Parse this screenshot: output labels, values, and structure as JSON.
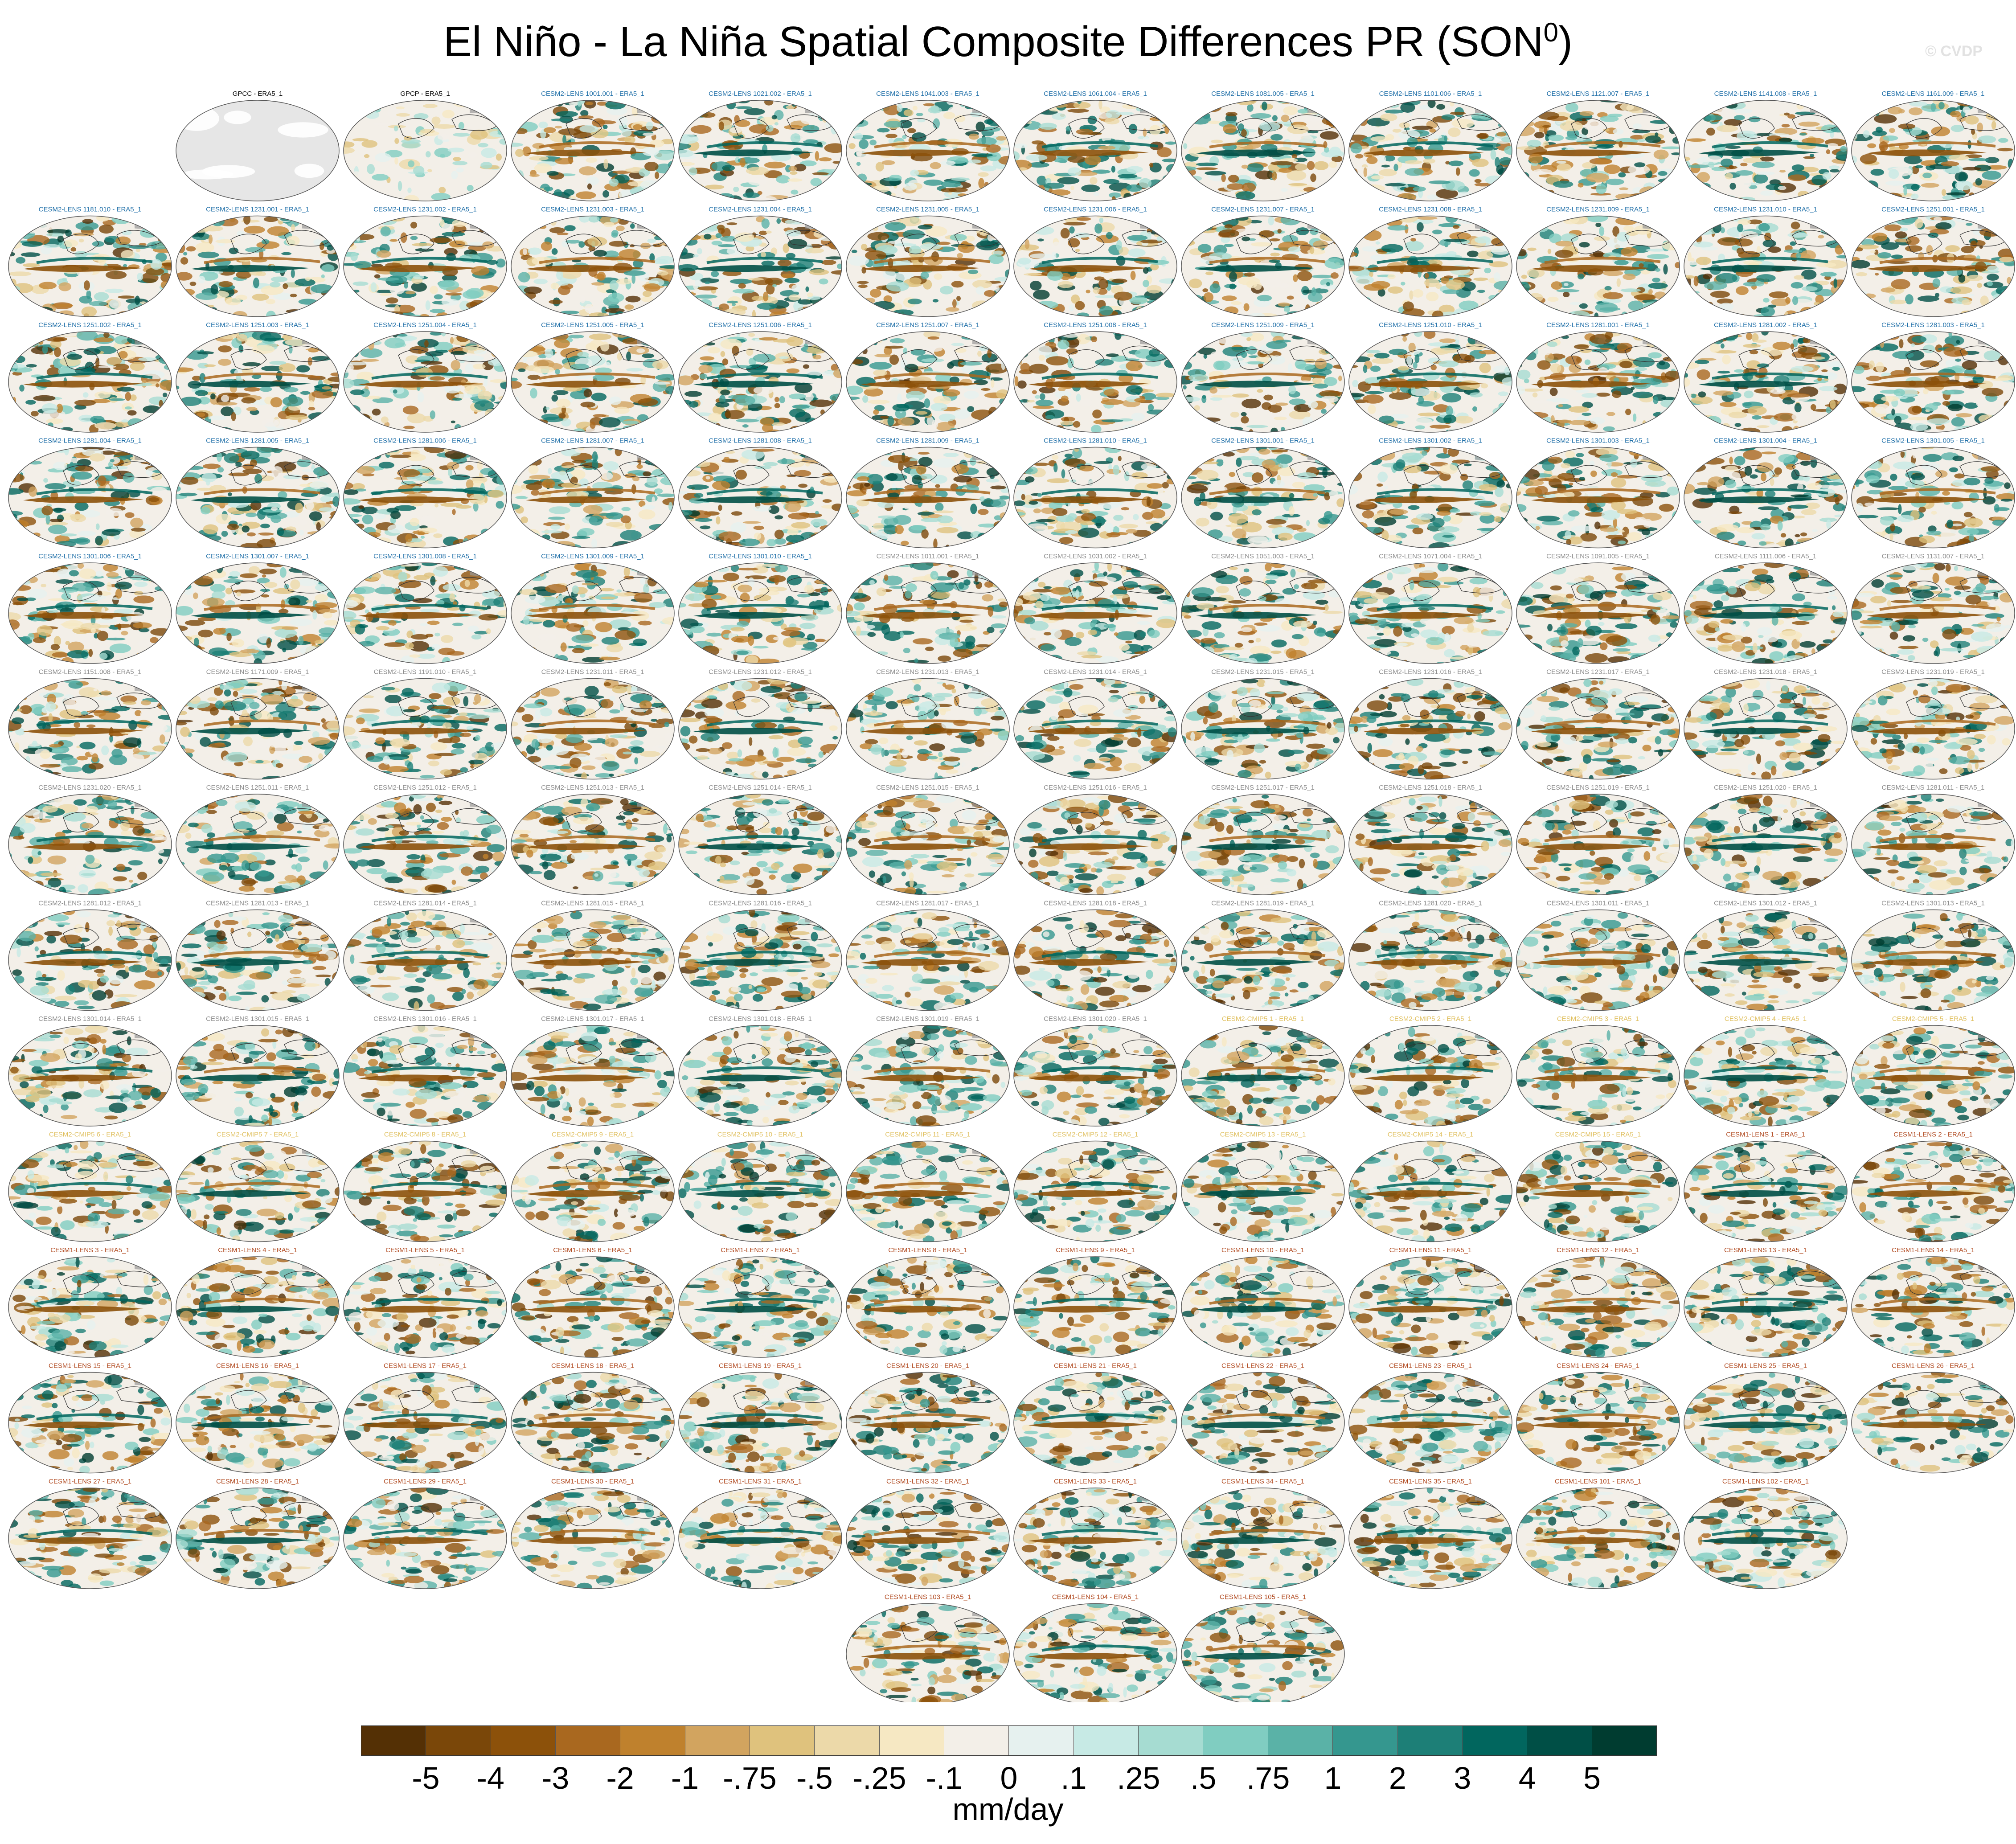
{
  "title": "El Niño - La Niña Spatial Composite Differences PR (SON",
  "title_superscript": "0",
  "title_suffix": ")",
  "watermark": "© CVDP",
  "colors": {
    "ens_cesm2_lens_a": "#1f6fa8",
    "ens_cesm2_lens_b": "#8c8c8c",
    "ens_cesm2_cmip5": "#e0c060",
    "ens_cesm1_lens": "#b0481e",
    "obs": "#000000"
  },
  "panels": [
    {
      "label": "GPCC - ERA5_1",
      "group": "obs",
      "kind": "mask"
    },
    {
      "label": "GPCP - ERA5_1",
      "group": "obs",
      "kind": "faint"
    },
    {
      "label": "CESM2-LENS 1001.001 - ERA5_1",
      "group": "ens_cesm2_lens_a"
    },
    {
      "label": "CESM2-LENS 1021.002 - ERA5_1",
      "group": "ens_cesm2_lens_a"
    },
    {
      "label": "CESM2-LENS 1041.003 - ERA5_1",
      "group": "ens_cesm2_lens_a"
    },
    {
      "label": "CESM2-LENS 1061.004 - ERA5_1",
      "group": "ens_cesm2_lens_a"
    },
    {
      "label": "CESM2-LENS 1081.005 - ERA5_1",
      "group": "ens_cesm2_lens_a"
    },
    {
      "label": "CESM2-LENS 1101.006 - ERA5_1",
      "group": "ens_cesm2_lens_a"
    },
    {
      "label": "CESM2-LENS 1121.007 - ERA5_1",
      "group": "ens_cesm2_lens_a"
    },
    {
      "label": "CESM2-LENS 1141.008 - ERA5_1",
      "group": "ens_cesm2_lens_a"
    },
    {
      "label": "CESM2-LENS 1161.009 - ERA5_1",
      "group": "ens_cesm2_lens_a"
    },
    {
      "label": "CESM2-LENS 1181.010 - ERA5_1",
      "group": "ens_cesm2_lens_a"
    },
    {
      "label": "CESM2-LENS 1231.001 - ERA5_1",
      "group": "ens_cesm2_lens_a"
    },
    {
      "label": "CESM2-LENS 1231.002 - ERA5_1",
      "group": "ens_cesm2_lens_a"
    },
    {
      "label": "CESM2-LENS 1231.003 - ERA5_1",
      "group": "ens_cesm2_lens_a"
    },
    {
      "label": "CESM2-LENS 1231.004 - ERA5_1",
      "group": "ens_cesm2_lens_a"
    },
    {
      "label": "CESM2-LENS 1231.005 - ERA5_1",
      "group": "ens_cesm2_lens_a"
    },
    {
      "label": "CESM2-LENS 1231.006 - ERA5_1",
      "group": "ens_cesm2_lens_a"
    },
    {
      "label": "CESM2-LENS 1231.007 - ERA5_1",
      "group": "ens_cesm2_lens_a"
    },
    {
      "label": "CESM2-LENS 1231.008 - ERA5_1",
      "group": "ens_cesm2_lens_a"
    },
    {
      "label": "CESM2-LENS 1231.009 - ERA5_1",
      "group": "ens_cesm2_lens_a"
    },
    {
      "label": "CESM2-LENS 1231.010 - ERA5_1",
      "group": "ens_cesm2_lens_a"
    },
    {
      "label": "CESM2-LENS 1251.001 - ERA5_1",
      "group": "ens_cesm2_lens_a"
    },
    {
      "label": "CESM2-LENS 1251.002 - ERA5_1",
      "group": "ens_cesm2_lens_a"
    },
    {
      "label": "CESM2-LENS 1251.003 - ERA5_1",
      "group": "ens_cesm2_lens_a"
    },
    {
      "label": "CESM2-LENS 1251.004 - ERA5_1",
      "group": "ens_cesm2_lens_a"
    },
    {
      "label": "CESM2-LENS 1251.005 - ERA5_1",
      "group": "ens_cesm2_lens_a"
    },
    {
      "label": "CESM2-LENS 1251.006 - ERA5_1",
      "group": "ens_cesm2_lens_a"
    },
    {
      "label": "CESM2-LENS 1251.007 - ERA5_1",
      "group": "ens_cesm2_lens_a"
    },
    {
      "label": "CESM2-LENS 1251.008 - ERA5_1",
      "group": "ens_cesm2_lens_a"
    },
    {
      "label": "CESM2-LENS 1251.009 - ERA5_1",
      "group": "ens_cesm2_lens_a"
    },
    {
      "label": "CESM2-LENS 1251.010 - ERA5_1",
      "group": "ens_cesm2_lens_a"
    },
    {
      "label": "CESM2-LENS 1281.001 - ERA5_1",
      "group": "ens_cesm2_lens_a"
    },
    {
      "label": "CESM2-LENS 1281.002 - ERA5_1",
      "group": "ens_cesm2_lens_a"
    },
    {
      "label": "CESM2-LENS 1281.003 - ERA5_1",
      "group": "ens_cesm2_lens_a"
    },
    {
      "label": "CESM2-LENS 1281.004 - ERA5_1",
      "group": "ens_cesm2_lens_a"
    },
    {
      "label": "CESM2-LENS 1281.005 - ERA5_1",
      "group": "ens_cesm2_lens_a"
    },
    {
      "label": "CESM2-LENS 1281.006 - ERA5_1",
      "group": "ens_cesm2_lens_a"
    },
    {
      "label": "CESM2-LENS 1281.007 - ERA5_1",
      "group": "ens_cesm2_lens_a"
    },
    {
      "label": "CESM2-LENS 1281.008 - ERA5_1",
      "group": "ens_cesm2_lens_a"
    },
    {
      "label": "CESM2-LENS 1281.009 - ERA5_1",
      "group": "ens_cesm2_lens_a"
    },
    {
      "label": "CESM2-LENS 1281.010 - ERA5_1",
      "group": "ens_cesm2_lens_a"
    },
    {
      "label": "CESM2-LENS 1301.001 - ERA5_1",
      "group": "ens_cesm2_lens_a"
    },
    {
      "label": "CESM2-LENS 1301.002 - ERA5_1",
      "group": "ens_cesm2_lens_a"
    },
    {
      "label": "CESM2-LENS 1301.003 - ERA5_1",
      "group": "ens_cesm2_lens_a"
    },
    {
      "label": "CESM2-LENS 1301.004 - ERA5_1",
      "group": "ens_cesm2_lens_a"
    },
    {
      "label": "CESM2-LENS 1301.005 - ERA5_1",
      "group": "ens_cesm2_lens_a"
    },
    {
      "label": "CESM2-LENS 1301.006 - ERA5_1",
      "group": "ens_cesm2_lens_a"
    },
    {
      "label": "CESM2-LENS 1301.007 - ERA5_1",
      "group": "ens_cesm2_lens_a"
    },
    {
      "label": "CESM2-LENS 1301.008 - ERA5_1",
      "group": "ens_cesm2_lens_a"
    },
    {
      "label": "CESM2-LENS 1301.009 - ERA5_1",
      "group": "ens_cesm2_lens_a"
    },
    {
      "label": "CESM2-LENS 1301.010 - ERA5_1",
      "group": "ens_cesm2_lens_a"
    },
    {
      "label": "CESM2-LENS 1011.001 - ERA5_1",
      "group": "ens_cesm2_lens_b"
    },
    {
      "label": "CESM2-LENS 1031.002 - ERA5_1",
      "group": "ens_cesm2_lens_b"
    },
    {
      "label": "CESM2-LENS 1051.003 - ERA5_1",
      "group": "ens_cesm2_lens_b"
    },
    {
      "label": "CESM2-LENS 1071.004 - ERA5_1",
      "group": "ens_cesm2_lens_b"
    },
    {
      "label": "CESM2-LENS 1091.005 - ERA5_1",
      "group": "ens_cesm2_lens_b"
    },
    {
      "label": "CESM2-LENS 1111.006 - ERA5_1",
      "group": "ens_cesm2_lens_b"
    },
    {
      "label": "CESM2-LENS 1131.007 - ERA5_1",
      "group": "ens_cesm2_lens_b"
    },
    {
      "label": "CESM2-LENS 1151.008 - ERA5_1",
      "group": "ens_cesm2_lens_b"
    },
    {
      "label": "CESM2-LENS 1171.009 - ERA5_1",
      "group": "ens_cesm2_lens_b"
    },
    {
      "label": "CESM2-LENS 1191.010 - ERA5_1",
      "group": "ens_cesm2_lens_b"
    },
    {
      "label": "CESM2-LENS 1231.011 - ERA5_1",
      "group": "ens_cesm2_lens_b"
    },
    {
      "label": "CESM2-LENS 1231.012 - ERA5_1",
      "group": "ens_cesm2_lens_b"
    },
    {
      "label": "CESM2-LENS 1231.013 - ERA5_1",
      "group": "ens_cesm2_lens_b"
    },
    {
      "label": "CESM2-LENS 1231.014 - ERA5_1",
      "group": "ens_cesm2_lens_b"
    },
    {
      "label": "CESM2-LENS 1231.015 - ERA5_1",
      "group": "ens_cesm2_lens_b"
    },
    {
      "label": "CESM2-LENS 1231.016 - ERA5_1",
      "group": "ens_cesm2_lens_b"
    },
    {
      "label": "CESM2-LENS 1231.017 - ERA5_1",
      "group": "ens_cesm2_lens_b"
    },
    {
      "label": "CESM2-LENS 1231.018 - ERA5_1",
      "group": "ens_cesm2_lens_b"
    },
    {
      "label": "CESM2-LENS 1231.019 - ERA5_1",
      "group": "ens_cesm2_lens_b"
    },
    {
      "label": "CESM2-LENS 1231.020 - ERA5_1",
      "group": "ens_cesm2_lens_b"
    },
    {
      "label": "CESM2-LENS 1251.011 - ERA5_1",
      "group": "ens_cesm2_lens_b"
    },
    {
      "label": "CESM2-LENS 1251.012 - ERA5_1",
      "group": "ens_cesm2_lens_b"
    },
    {
      "label": "CESM2-LENS 1251.013 - ERA5_1",
      "group": "ens_cesm2_lens_b"
    },
    {
      "label": "CESM2-LENS 1251.014 - ERA5_1",
      "group": "ens_cesm2_lens_b"
    },
    {
      "label": "CESM2-LENS 1251.015 - ERA5_1",
      "group": "ens_cesm2_lens_b"
    },
    {
      "label": "CESM2-LENS 1251.016 - ERA5_1",
      "group": "ens_cesm2_lens_b"
    },
    {
      "label": "CESM2-LENS 1251.017 - ERA5_1",
      "group": "ens_cesm2_lens_b"
    },
    {
      "label": "CESM2-LENS 1251.018 - ERA5_1",
      "group": "ens_cesm2_lens_b"
    },
    {
      "label": "CESM2-LENS 1251.019 - ERA5_1",
      "group": "ens_cesm2_lens_b"
    },
    {
      "label": "CESM2-LENS 1251.020 - ERA5_1",
      "group": "ens_cesm2_lens_b"
    },
    {
      "label": "CESM2-LENS 1281.011 - ERA5_1",
      "group": "ens_cesm2_lens_b"
    },
    {
      "label": "CESM2-LENS 1281.012 - ERA5_1",
      "group": "ens_cesm2_lens_b"
    },
    {
      "label": "CESM2-LENS 1281.013 - ERA5_1",
      "group": "ens_cesm2_lens_b"
    },
    {
      "label": "CESM2-LENS 1281.014 - ERA5_1",
      "group": "ens_cesm2_lens_b"
    },
    {
      "label": "CESM2-LENS 1281.015 - ERA5_1",
      "group": "ens_cesm2_lens_b"
    },
    {
      "label": "CESM2-LENS 1281.016 - ERA5_1",
      "group": "ens_cesm2_lens_b"
    },
    {
      "label": "CESM2-LENS 1281.017 - ERA5_1",
      "group": "ens_cesm2_lens_b"
    },
    {
      "label": "CESM2-LENS 1281.018 - ERA5_1",
      "group": "ens_cesm2_lens_b"
    },
    {
      "label": "CESM2-LENS 1281.019 - ERA5_1",
      "group": "ens_cesm2_lens_b"
    },
    {
      "label": "CESM2-LENS 1281.020 - ERA5_1",
      "group": "ens_cesm2_lens_b"
    },
    {
      "label": "CESM2-LENS 1301.011 - ERA5_1",
      "group": "ens_cesm2_lens_b"
    },
    {
      "label": "CESM2-LENS 1301.012 - ERA5_1",
      "group": "ens_cesm2_lens_b"
    },
    {
      "label": "CESM2-LENS 1301.013 - ERA5_1",
      "group": "ens_cesm2_lens_b"
    },
    {
      "label": "CESM2-LENS 1301.014 - ERA5_1",
      "group": "ens_cesm2_lens_b"
    },
    {
      "label": "CESM2-LENS 1301.015 - ERA5_1",
      "group": "ens_cesm2_lens_b"
    },
    {
      "label": "CESM2-LENS 1301.016 - ERA5_1",
      "group": "ens_cesm2_lens_b"
    },
    {
      "label": "CESM2-LENS 1301.017 - ERA5_1",
      "group": "ens_cesm2_lens_b"
    },
    {
      "label": "CESM2-LENS 1301.018 - ERA5_1",
      "group": "ens_cesm2_lens_b"
    },
    {
      "label": "CESM2-LENS 1301.019 - ERA5_1",
      "group": "ens_cesm2_lens_b"
    },
    {
      "label": "CESM2-LENS 1301.020 - ERA5_1",
      "group": "ens_cesm2_lens_b"
    },
    {
      "label": "CESM2-CMIP5 1 - ERA5_1",
      "group": "ens_cesm2_cmip5"
    },
    {
      "label": "CESM2-CMIP5 2 - ERA5_1",
      "group": "ens_cesm2_cmip5"
    },
    {
      "label": "CESM2-CMIP5 3 - ERA5_1",
      "group": "ens_cesm2_cmip5"
    },
    {
      "label": "CESM2-CMIP5 4 - ERA5_1",
      "group": "ens_cesm2_cmip5"
    },
    {
      "label": "CESM2-CMIP5 5 - ERA5_1",
      "group": "ens_cesm2_cmip5"
    },
    {
      "label": "CESM2-CMIP5 6 - ERA5_1",
      "group": "ens_cesm2_cmip5"
    },
    {
      "label": "CESM2-CMIP5 7 - ERA5_1",
      "group": "ens_cesm2_cmip5"
    },
    {
      "label": "CESM2-CMIP5 8 - ERA5_1",
      "group": "ens_cesm2_cmip5"
    },
    {
      "label": "CESM2-CMIP5 9 - ERA5_1",
      "group": "ens_cesm2_cmip5"
    },
    {
      "label": "CESM2-CMIP5 10 - ERA5_1",
      "group": "ens_cesm2_cmip5"
    },
    {
      "label": "CESM2-CMIP5 11 - ERA5_1",
      "group": "ens_cesm2_cmip5"
    },
    {
      "label": "CESM2-CMIP5 12 - ERA5_1",
      "group": "ens_cesm2_cmip5"
    },
    {
      "label": "CESM2-CMIP5 13 - ERA5_1",
      "group": "ens_cesm2_cmip5"
    },
    {
      "label": "CESM2-CMIP5 14 - ERA5_1",
      "group": "ens_cesm2_cmip5"
    },
    {
      "label": "CESM2-CMIP5 15 - ERA5_1",
      "group": "ens_cesm2_cmip5"
    },
    {
      "label": "CESM1-LENS 1 - ERA5_1",
      "group": "ens_cesm1_lens"
    },
    {
      "label": "CESM1-LENS 2 - ERA5_1",
      "group": "ens_cesm1_lens"
    },
    {
      "label": "CESM1-LENS 3 - ERA5_1",
      "group": "ens_cesm1_lens"
    },
    {
      "label": "CESM1-LENS 4 - ERA5_1",
      "group": "ens_cesm1_lens"
    },
    {
      "label": "CESM1-LENS 5 - ERA5_1",
      "group": "ens_cesm1_lens"
    },
    {
      "label": "CESM1-LENS 6 - ERA5_1",
      "group": "ens_cesm1_lens"
    },
    {
      "label": "CESM1-LENS 7 - ERA5_1",
      "group": "ens_cesm1_lens"
    },
    {
      "label": "CESM1-LENS 8 - ERA5_1",
      "group": "ens_cesm1_lens"
    },
    {
      "label": "CESM1-LENS 9 - ERA5_1",
      "group": "ens_cesm1_lens"
    },
    {
      "label": "CESM1-LENS 10 - ERA5_1",
      "group": "ens_cesm1_lens"
    },
    {
      "label": "CESM1-LENS 11 - ERA5_1",
      "group": "ens_cesm1_lens"
    },
    {
      "label": "CESM1-LENS 12 - ERA5_1",
      "group": "ens_cesm1_lens"
    },
    {
      "label": "CESM1-LENS 13 - ERA5_1",
      "group": "ens_cesm1_lens"
    },
    {
      "label": "CESM1-LENS 14 - ERA5_1",
      "group": "ens_cesm1_lens"
    },
    {
      "label": "CESM1-LENS 15 - ERA5_1",
      "group": "ens_cesm1_lens"
    },
    {
      "label": "CESM1-LENS 16 - ERA5_1",
      "group": "ens_cesm1_lens"
    },
    {
      "label": "CESM1-LENS 17 - ERA5_1",
      "group": "ens_cesm1_lens"
    },
    {
      "label": "CESM1-LENS 18 - ERA5_1",
      "group": "ens_cesm1_lens"
    },
    {
      "label": "CESM1-LENS 19 - ERA5_1",
      "group": "ens_cesm1_lens"
    },
    {
      "label": "CESM1-LENS 20 - ERA5_1",
      "group": "ens_cesm1_lens"
    },
    {
      "label": "CESM1-LENS 21 - ERA5_1",
      "group": "ens_cesm1_lens"
    },
    {
      "label": "CESM1-LENS 22 - ERA5_1",
      "group": "ens_cesm1_lens"
    },
    {
      "label": "CESM1-LENS 23 - ERA5_1",
      "group": "ens_cesm1_lens"
    },
    {
      "label": "CESM1-LENS 24 - ERA5_1",
      "group": "ens_cesm1_lens"
    },
    {
      "label": "CESM1-LENS 25 - ERA5_1",
      "group": "ens_cesm1_lens"
    },
    {
      "label": "CESM1-LENS 26 - ERA5_1",
      "group": "ens_cesm1_lens"
    },
    {
      "label": "CESM1-LENS 27 - ERA5_1",
      "group": "ens_cesm1_lens"
    },
    {
      "label": "CESM1-LENS 28 - ERA5_1",
      "group": "ens_cesm1_lens"
    },
    {
      "label": "CESM1-LENS 29 - ERA5_1",
      "group": "ens_cesm1_lens"
    },
    {
      "label": "CESM1-LENS 30 - ERA5_1",
      "group": "ens_cesm1_lens"
    },
    {
      "label": "CESM1-LENS 31 - ERA5_1",
      "group": "ens_cesm1_lens"
    },
    {
      "label": "CESM1-LENS 32 - ERA5_1",
      "group": "ens_cesm1_lens"
    },
    {
      "label": "CESM1-LENS 33 - ERA5_1",
      "group": "ens_cesm1_lens"
    },
    {
      "label": "CESM1-LENS 34 - ERA5_1",
      "group": "ens_cesm1_lens"
    },
    {
      "label": "CESM1-LENS 35 - ERA5_1",
      "group": "ens_cesm1_lens"
    },
    {
      "label": "CESM1-LENS 101 - ERA5_1",
      "group": "ens_cesm1_lens"
    },
    {
      "label": "CESM1-LENS 102 - ERA5_1",
      "group": "ens_cesm1_lens"
    },
    {
      "label": "CESM1-LENS 103 - ERA5_1",
      "group": "ens_cesm1_lens"
    },
    {
      "label": "CESM1-LENS 104 - ERA5_1",
      "group": "ens_cesm1_lens"
    },
    {
      "label": "CESM1-LENS 105 - ERA5_1",
      "group": "ens_cesm1_lens"
    }
  ],
  "colorbar": {
    "colors": [
      "#543005",
      "#7a4709",
      "#8c510a",
      "#a9681f",
      "#bf812d",
      "#d2a45f",
      "#dfc27d",
      "#ecd9a9",
      "#f6e8c3",
      "#f3efe8",
      "#e6f1ef",
      "#c7eae5",
      "#a6dcd2",
      "#80cdc1",
      "#5ab2a7",
      "#35978f",
      "#1d7f77",
      "#01665e",
      "#004f46",
      "#003c30"
    ],
    "labels": [
      "-5",
      "-4",
      "-3",
      "-2",
      "-1",
      "-.75",
      "-.5",
      "-.25",
      "-.1",
      "0",
      ".1",
      ".25",
      ".5",
      ".75",
      "1",
      "2",
      "3",
      "4",
      "5"
    ],
    "units": "mm/day"
  }
}
